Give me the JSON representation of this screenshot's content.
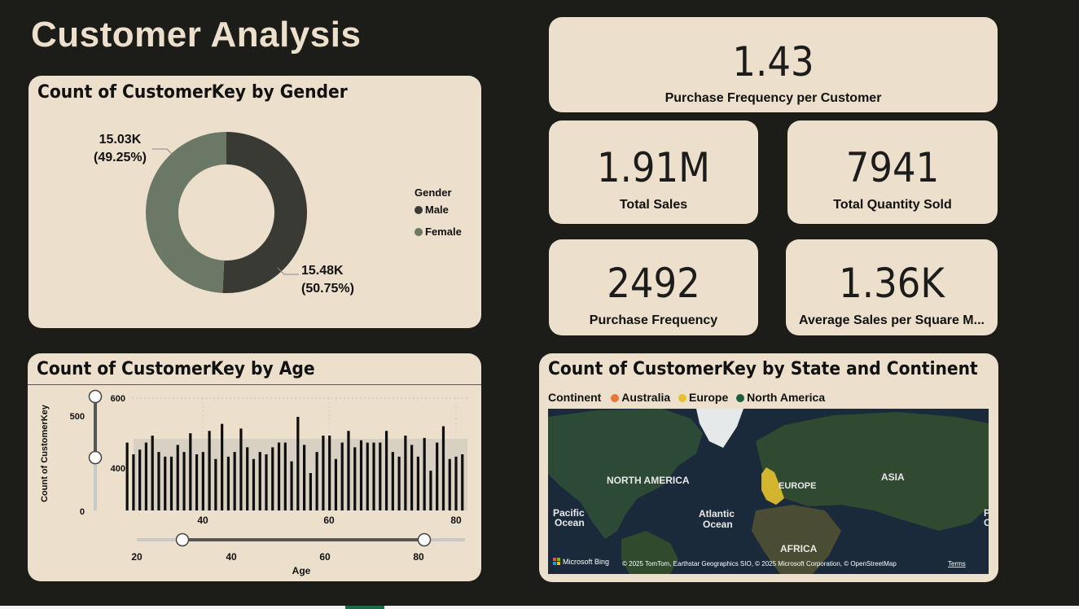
{
  "title": "Customer Analysis",
  "kpis": {
    "purchase_freq_per_customer": {
      "value": "1.43",
      "label": "Purchase Frequency per Customer"
    },
    "total_sales": {
      "value": "1.91M",
      "label": "Total Sales"
    },
    "total_quantity": {
      "value": "7941",
      "label": "Total Quantity Sold"
    },
    "purchase_frequency": {
      "value": "2492",
      "label": "Purchase Frequency"
    },
    "avg_sales_sqm": {
      "value": "1.36K",
      "label": "Average Sales per Square M..."
    }
  },
  "gender_chart": {
    "title": "Count of CustomerKey by Gender",
    "legend_title": "Gender",
    "slices": [
      {
        "name": "Male",
        "value": 15480,
        "label": "15.48K",
        "pct": "(50.75%)",
        "color": "#3a3a35"
      },
      {
        "name": "Female",
        "value": 15030,
        "label": "15.03K",
        "pct": "(49.25%)",
        "color": "#6b7865"
      }
    ]
  },
  "age_chart": {
    "title": "Count of CustomerKey by Age",
    "ylabel": "Count of CustomerKey",
    "xlabel": "Age",
    "ytick_labels": [
      "600",
      "400"
    ],
    "xtick_labels": [
      "40",
      "60",
      "80"
    ],
    "y_slider": {
      "max_label": "500",
      "min_label": "0",
      "upper": 500,
      "lower": 400
    },
    "x_slider": {
      "tick_labels": [
        "20",
        "40",
        "60",
        "80"
      ],
      "lower": 30,
      "upper": 80
    }
  },
  "chart_data": {
    "type": "bar",
    "title": "Count of CustomerKey by Age",
    "xlabel": "Age",
    "ylabel": "Count of CustomerKey",
    "ylim": [
      360,
      600
    ],
    "x": [
      28,
      29,
      30,
      31,
      32,
      33,
      34,
      35,
      36,
      37,
      38,
      39,
      40,
      41,
      42,
      43,
      44,
      45,
      46,
      47,
      48,
      49,
      50,
      51,
      52,
      53,
      54,
      55,
      56,
      57,
      58,
      59,
      60,
      61,
      62,
      63,
      64,
      65,
      66,
      67,
      68,
      69,
      70,
      71,
      72,
      73,
      74,
      75,
      76,
      77,
      78,
      79,
      80,
      81
    ],
    "values": [
      505,
      480,
      490,
      505,
      520,
      485,
      475,
      475,
      500,
      485,
      525,
      480,
      485,
      530,
      470,
      545,
      475,
      485,
      535,
      495,
      470,
      485,
      480,
      495,
      505,
      505,
      465,
      560,
      500,
      440,
      485,
      520,
      520,
      470,
      505,
      530,
      495,
      510,
      505,
      505,
      505,
      530,
      485,
      475,
      520,
      500,
      475,
      515,
      445,
      505,
      540,
      470,
      475,
      480
    ]
  },
  "map_chart": {
    "title": "Count of CustomerKey by State and Continent",
    "legend_title": "Continent",
    "legend": [
      {
        "name": "Australia",
        "color": "#e8773a"
      },
      {
        "name": "Europe",
        "color": "#e6c22e"
      },
      {
        "name": "North America",
        "color": "#1d5e3e"
      }
    ],
    "labels": {
      "north_america": "NORTH AMERICA",
      "europe": "EUROPE",
      "asia": "ASIA",
      "africa": "AFRICA",
      "pacific": "Pacific",
      "pacific2": "Ocean",
      "atlantic": "Atlantic",
      "atlantic2": "Ocean",
      "edge_p": "P",
      "edge_c": "C"
    },
    "bing": "Microsoft Bing",
    "attribution": "© 2025 TomTom, Earthstar Geographics SIO, © 2025 Microsoft Corporation, © OpenStreetMap",
    "terms": "Terms"
  }
}
